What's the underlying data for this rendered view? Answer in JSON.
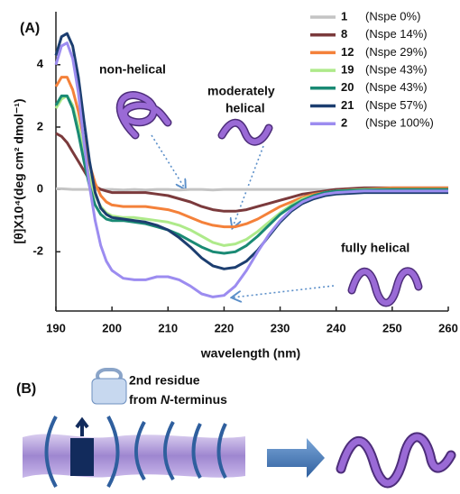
{
  "chart_data": {
    "type": "line",
    "panel_label": "(A)",
    "x_label": "wavelength (nm)",
    "y_label": "[θ]X10⁴(deg cm² dmol⁻¹)",
    "x": [
      190,
      191,
      192,
      193,
      194,
      195,
      196,
      197,
      198,
      199,
      200,
      202,
      204,
      206,
      208,
      210,
      212,
      214,
      216,
      218,
      220,
      222,
      224,
      226,
      228,
      230,
      232,
      234,
      236,
      238,
      240,
      245,
      250,
      255,
      260
    ],
    "series": [
      {
        "name": "1",
        "label": "(Nspe 0%)",
        "color": "#c4c4c4",
        "values": [
          0.02,
          0.02,
          0.01,
          0,
          0,
          0,
          0,
          0,
          0,
          0,
          0,
          -0.02,
          0,
          -0.02,
          0,
          0,
          -0.02,
          0,
          0,
          -0.02,
          0,
          0,
          0,
          0,
          0,
          0,
          0,
          0,
          0,
          0,
          0,
          0,
          0,
          0,
          0
        ]
      },
      {
        "name": "8",
        "label": "(Nspe 14%)",
        "color": "#7b3a3c",
        "values": [
          1.8,
          1.7,
          1.5,
          1.2,
          0.9,
          0.6,
          0.3,
          0.1,
          0,
          -0.05,
          -0.1,
          -0.1,
          -0.1,
          -0.1,
          -0.15,
          -0.2,
          -0.3,
          -0.4,
          -0.55,
          -0.65,
          -0.7,
          -0.7,
          -0.65,
          -0.55,
          -0.45,
          -0.35,
          -0.25,
          -0.15,
          -0.1,
          -0.05,
          0,
          0.05,
          0.05,
          0.05,
          0.05
        ]
      },
      {
        "name": "12",
        "label": "(Nspe 29%)",
        "color": "#f4813a",
        "values": [
          3.3,
          3.6,
          3.6,
          3.2,
          2.5,
          1.6,
          0.8,
          0.2,
          -0.2,
          -0.4,
          -0.5,
          -0.55,
          -0.55,
          -0.55,
          -0.6,
          -0.65,
          -0.75,
          -0.9,
          -1.05,
          -1.15,
          -1.2,
          -1.2,
          -1.1,
          -0.95,
          -0.75,
          -0.55,
          -0.4,
          -0.25,
          -0.15,
          -0.1,
          -0.05,
          0,
          0.05,
          0.05,
          0.05
        ]
      },
      {
        "name": "19",
        "label": "(Nspe 43%)",
        "color": "#aeea8a",
        "values": [
          2.6,
          2.9,
          3.0,
          2.7,
          2.0,
          1.2,
          0.4,
          -0.2,
          -0.55,
          -0.75,
          -0.85,
          -0.9,
          -0.9,
          -0.95,
          -1.0,
          -1.05,
          -1.15,
          -1.3,
          -1.5,
          -1.7,
          -1.8,
          -1.75,
          -1.6,
          -1.35,
          -1.05,
          -0.75,
          -0.5,
          -0.3,
          -0.2,
          -0.1,
          -0.05,
          0,
          0,
          0,
          0
        ]
      },
      {
        "name": "20",
        "label": "(Nspe 43%)",
        "color": "#1a8a74",
        "values": [
          2.7,
          3.0,
          3.0,
          2.6,
          1.8,
          0.9,
          0.1,
          -0.5,
          -0.8,
          -0.95,
          -1.0,
          -1.0,
          -1.05,
          -1.1,
          -1.2,
          -1.3,
          -1.45,
          -1.65,
          -1.85,
          -2.0,
          -2.05,
          -2.0,
          -1.8,
          -1.5,
          -1.15,
          -0.8,
          -0.55,
          -0.35,
          -0.2,
          -0.1,
          -0.05,
          -0.02,
          0,
          0,
          0
        ]
      },
      {
        "name": "21",
        "label": "(Nspe 57%)",
        "color": "#1c3e70",
        "values": [
          4.3,
          4.9,
          5.0,
          4.6,
          3.6,
          2.2,
          0.9,
          -0.1,
          -0.6,
          -0.8,
          -0.9,
          -0.95,
          -1.0,
          -1.05,
          -1.15,
          -1.3,
          -1.55,
          -1.85,
          -2.2,
          -2.45,
          -2.55,
          -2.5,
          -2.3,
          -1.95,
          -1.5,
          -1.05,
          -0.7,
          -0.45,
          -0.3,
          -0.2,
          -0.15,
          -0.1,
          -0.1,
          -0.1,
          -0.1
        ]
      },
      {
        "name": "2",
        "label": "(Nspe 100%)",
        "color": "#9c8cf0",
        "values": [
          4.0,
          4.6,
          4.7,
          4.2,
          3.1,
          1.5,
          0.1,
          -1.0,
          -1.8,
          -2.3,
          -2.6,
          -2.85,
          -2.9,
          -2.9,
          -2.8,
          -2.8,
          -2.9,
          -3.1,
          -3.35,
          -3.45,
          -3.4,
          -3.1,
          -2.6,
          -2.0,
          -1.45,
          -1.0,
          -0.65,
          -0.4,
          -0.25,
          -0.15,
          -0.1,
          -0.05,
          -0.05,
          -0.05,
          -0.05
        ]
      }
    ],
    "xlim": [
      190,
      260
    ],
    "xticks": [
      190,
      200,
      210,
      220,
      230,
      240,
      250,
      260
    ],
    "ylim": [
      -3.9,
      5.7
    ],
    "yticks": [
      -2,
      0,
      2,
      4
    ],
    "annotations": [
      "non-helical",
      "moderately",
      "helical",
      "fully helical"
    ]
  },
  "panel_b": {
    "label": "(B)",
    "line1": "2nd residue",
    "line2": [
      "from ",
      "N",
      "-terminus"
    ]
  }
}
